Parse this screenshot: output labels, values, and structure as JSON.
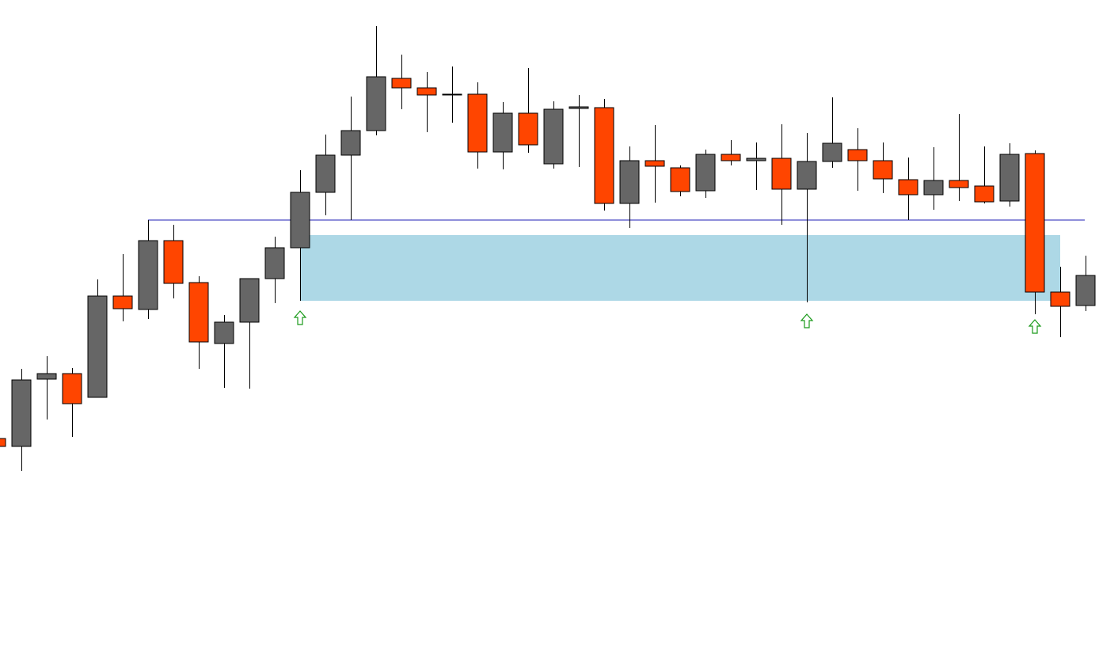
{
  "chart_data": {
    "type": "candlestick",
    "ylim": [
      0,
      849
    ],
    "up_color": "#666666",
    "down_color": "#ff4500",
    "level": 571,
    "level_color": "#1f1fb4",
    "zone": [
      469,
      552
    ],
    "zone_color": "#add8e6",
    "open": [
      295,
      285,
      370,
      377,
      347,
      475,
      458,
      545,
      492,
      415,
      442,
      497,
      536,
      606,
      653,
      684,
      750,
      738,
      729,
      730,
      657,
      706,
      642,
      712,
      713,
      592,
      646,
      637,
      608,
      654,
      646,
      649,
      610,
      645,
      660,
      646,
      622,
      603,
      621,
      614,
      595,
      655,
      480,
      463
    ],
    "high": [
      295,
      383,
      399,
      384,
      496,
      528,
      571,
      565,
      500,
      451,
      497,
      550,
      634,
      679,
      727,
      816,
      780,
      758,
      765,
      745,
      720,
      763,
      721,
      729,
      724,
      664,
      691,
      640,
      660,
      672,
      669,
      692,
      681,
      726,
      687,
      669,
      650,
      663,
      705,
      664,
      668,
      659,
      512,
      526
    ],
    "low": [
      285,
      254,
      319,
      297,
      347,
      443,
      446,
      472,
      383,
      359,
      358,
      466,
      469,
      577,
      571,
      678,
      711,
      682,
      694,
      636,
      635,
      656,
      636,
      638,
      583,
      561,
      593,
      601,
      599,
      640,
      609,
      565,
      467,
      637,
      608,
      605,
      571,
      584,
      595,
      592,
      588,
      452,
      423,
      456
    ],
    "close": [
      285,
      369,
      377,
      339,
      475,
      459,
      545,
      491,
      417,
      442,
      497,
      536,
      606,
      653,
      684,
      752,
      738,
      729,
      730,
      657,
      706,
      666,
      711,
      714,
      592,
      646,
      639,
      607,
      654,
      646,
      649,
      610,
      645,
      668,
      646,
      623,
      603,
      621,
      612,
      594,
      654,
      480,
      462,
      501
    ]
  }
}
